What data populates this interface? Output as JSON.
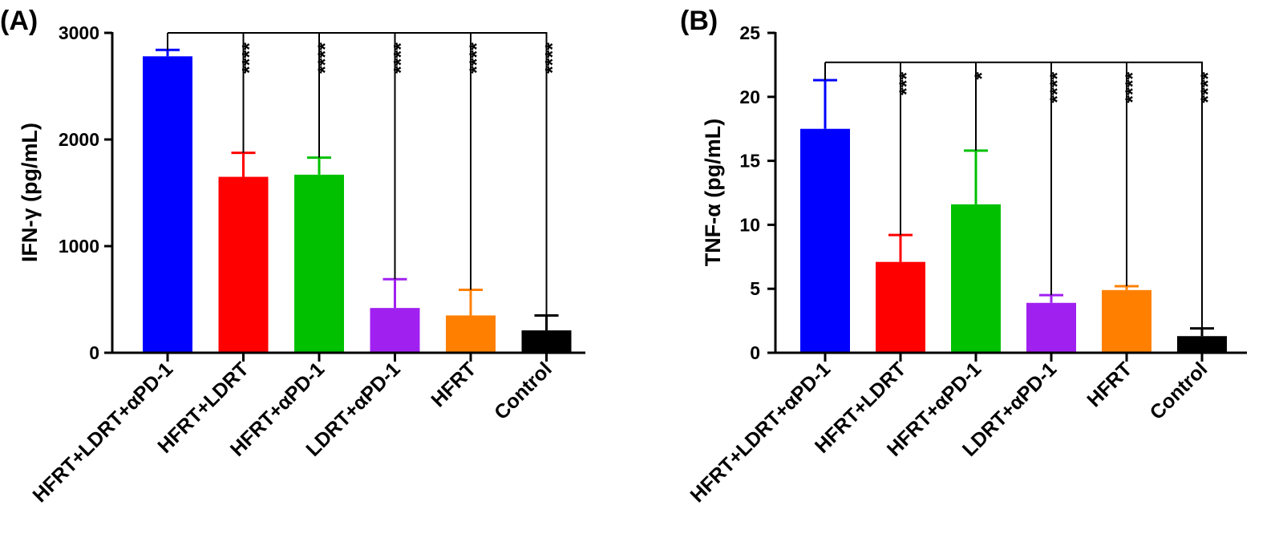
{
  "chart_data": [
    {
      "type": "bar",
      "panel_label": "(A)",
      "title": "",
      "xlabel": "",
      "ylabel": "IFN-γ (pg/mL)",
      "ylim": [
        0,
        3000
      ],
      "yticks": [
        0,
        1000,
        2000,
        3000
      ],
      "categories": [
        "HFRT+LDRT+αPD-1",
        "HFRT+LDRT",
        "HFRT+αPD-1",
        "LDRT+αPD-1",
        "HFRT",
        "Control"
      ],
      "values": [
        2780,
        1650,
        1670,
        420,
        350,
        210
      ],
      "errors": [
        60,
        225,
        160,
        270,
        240,
        140
      ],
      "colors": [
        "#0000ff",
        "#ff0000",
        "#00c000",
        "#a020f0",
        "#ff8000",
        "#000000"
      ],
      "comparison_bar_y": 3000,
      "significance": [
        "",
        "****",
        "****",
        "****",
        "****",
        "****"
      ]
    },
    {
      "type": "bar",
      "panel_label": "(B)",
      "title": "",
      "xlabel": "",
      "ylabel": "TNF-α (pg/mL)",
      "ylim": [
        0,
        25
      ],
      "yticks": [
        0,
        5,
        10,
        15,
        20,
        25
      ],
      "categories": [
        "HFRT+LDRT+αPD-1",
        "HFRT+LDRT",
        "HFRT+αPD-1",
        "LDRT+αPD-1",
        "HFRT",
        "Control"
      ],
      "values": [
        17.5,
        7.1,
        11.6,
        3.9,
        4.9,
        1.3
      ],
      "errors": [
        3.8,
        2.1,
        4.2,
        0.6,
        0.3,
        0.6
      ],
      "colors": [
        "#0000ff",
        "#ff0000",
        "#00c000",
        "#a020f0",
        "#ff8000",
        "#000000"
      ],
      "comparison_bar_y": 22.7,
      "significance": [
        "",
        "***",
        "*",
        "****",
        "****",
        "****"
      ]
    }
  ]
}
